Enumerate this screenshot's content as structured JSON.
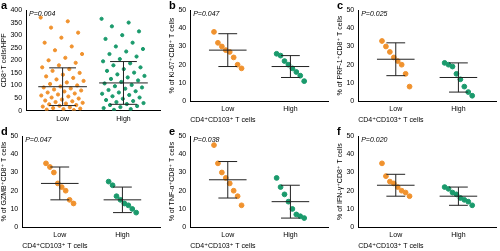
{
  "chart_data": [
    {
      "type": "scatter",
      "panel_label": "a",
      "annotation": "P=0.004",
      "y_label": "CD8⁺T cells/HPF",
      "categories": [
        "Low",
        "High"
      ],
      "colors": [
        "#f0922e",
        "#1a9a6c"
      ],
      "values": [
        [
          370,
          355,
          330,
          310,
          290,
          270,
          255,
          240,
          225,
          210,
          200,
          190,
          180,
          172,
          165,
          158,
          150,
          143,
          136,
          130,
          124,
          118,
          112,
          106,
          100,
          96,
          92,
          88,
          84,
          80,
          76,
          72,
          68,
          64,
          60,
          56,
          52,
          48,
          44,
          40,
          37,
          34,
          31,
          28,
          25,
          22,
          19,
          16,
          13,
          10,
          8,
          6,
          4,
          2
        ],
        [
          365,
          350,
          335,
          315,
          300,
          285,
          270,
          255,
          245,
          235,
          225,
          215,
          205,
          196,
          188,
          180,
          172,
          165,
          158,
          151,
          144,
          138,
          132,
          126,
          120,
          114,
          108,
          102,
          97,
          92,
          87,
          82,
          77,
          72,
          67,
          62,
          57,
          52,
          47,
          42,
          38,
          34,
          30,
          26,
          22,
          18,
          14,
          10,
          6,
          3
        ]
      ],
      "means": [
        95,
        110
      ],
      "errors": [
        75,
        85
      ],
      "ylim": [
        0,
        400
      ],
      "yticks": [
        0,
        50,
        100,
        150,
        200,
        250,
        300,
        350,
        400
      ],
      "grid": false
    },
    {
      "type": "scatter",
      "panel_label": "b",
      "annotation": "P=0.047",
      "y_label": "% of Ki-67⁺CD8⁺ T cells",
      "x_label": "CD4⁺CD103⁺ T cells",
      "categories": [
        "Low",
        "High"
      ],
      "colors": [
        "#f0922e",
        "#1a9a6c"
      ],
      "values": [
        [
          38,
          32,
          30,
          28,
          27,
          24,
          20,
          18
        ],
        [
          26,
          25,
          22,
          20,
          18,
          16,
          14,
          11
        ]
      ],
      "means": [
        28,
        19
      ],
      "errors": [
        9,
        6
      ],
      "ylim": [
        0,
        50
      ],
      "yticks": [
        0,
        10,
        20,
        30,
        40,
        50
      ],
      "grid": false
    },
    {
      "type": "scatter",
      "panel_label": "c",
      "annotation": "P=0.025",
      "y_label": "% of PRF-1⁺CD8⁺ T cells",
      "x_label": "CD4⁺CD103⁺ T cells",
      "categories": [
        "Low",
        "High"
      ],
      "colors": [
        "#f0922e",
        "#1a9a6c"
      ],
      "values": [
        [
          33,
          30,
          27,
          24,
          22,
          20,
          15,
          8
        ],
        [
          21,
          20,
          19,
          15,
          12,
          8,
          5,
          3
        ]
      ],
      "means": [
        23,
        13
      ],
      "errors": [
        9,
        8
      ],
      "ylim": [
        0,
        50
      ],
      "yticks": [
        0,
        10,
        20,
        30,
        40,
        50
      ],
      "grid": false
    },
    {
      "type": "scatter",
      "panel_label": "d",
      "annotation": "P=0.047",
      "y_label": "% of GZMB⁺CD8⁺ T cells",
      "x_label": "CD4⁺CD103⁺ T cells",
      "categories": [
        "Low",
        "High"
      ],
      "colors": [
        "#f0922e",
        "#1a9a6c"
      ],
      "values": [
        [
          35,
          33,
          30,
          24,
          22,
          20,
          15,
          13
        ],
        [
          25,
          23,
          17,
          15,
          13,
          12,
          10,
          8
        ]
      ],
      "means": [
        24,
        15
      ],
      "errors": [
        9,
        7
      ],
      "ylim": [
        0,
        50
      ],
      "yticks": [
        0,
        10,
        20,
        30,
        40,
        50
      ],
      "grid": false
    },
    {
      "type": "scatter",
      "panel_label": "e",
      "annotation": "P=0.038",
      "y_label": "% of TNF-α⁺CD8⁺ T cells",
      "x_label": "CD4⁺CD103⁺ T cells",
      "categories": [
        "Low",
        "High"
      ],
      "colors": [
        "#f0922e",
        "#1a9a6c"
      ],
      "values": [
        [
          45,
          35,
          30,
          27,
          24,
          20,
          17,
          12
        ],
        [
          27,
          22,
          18,
          14,
          10,
          7,
          6,
          5
        ]
      ],
      "means": [
        26,
        14
      ],
      "errors": [
        10,
        9
      ],
      "ylim": [
        0,
        50
      ],
      "yticks": [
        0,
        10,
        20,
        30,
        40,
        50
      ],
      "grid": false
    },
    {
      "type": "scatter",
      "panel_label": "f",
      "annotation": "P=0.020",
      "y_label": "% of IFN-γ⁺CD8⁺ T cells",
      "x_label": "CD4⁺CD103⁺ T cells",
      "categories": [
        "Low",
        "High"
      ],
      "colors": [
        "#f0922e",
        "#1a9a6c"
      ],
      "values": [
        [
          35,
          28,
          25,
          24,
          22,
          20,
          19,
          17
        ],
        [
          22,
          21,
          19,
          18,
          16,
          15,
          14,
          12
        ]
      ],
      "means": [
        23,
        17
      ],
      "errors": [
        6,
        5
      ],
      "ylim": [
        0,
        50
      ],
      "yticks": [
        0,
        10,
        20,
        30,
        40,
        50
      ],
      "grid": false
    }
  ]
}
